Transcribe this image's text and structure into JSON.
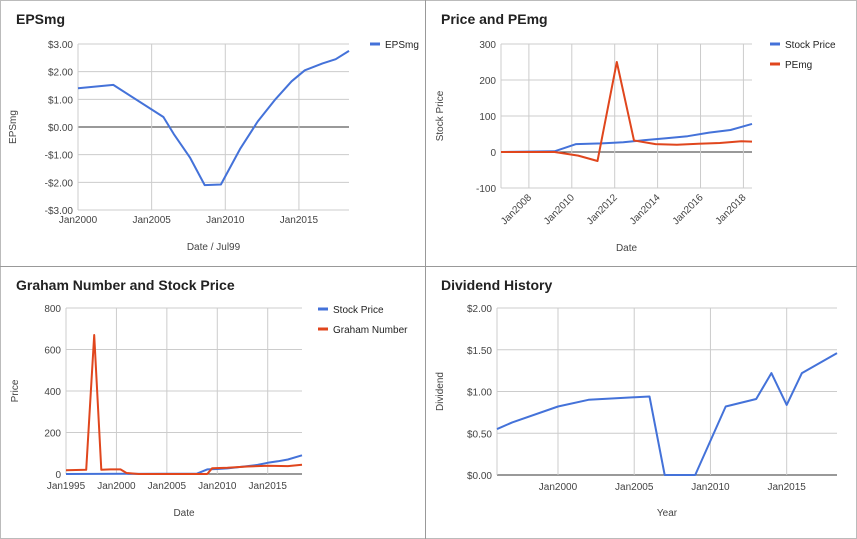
{
  "chart_data": [
    {
      "type": "line",
      "title": "EPSmg",
      "xlabel": "Date / Jul99",
      "ylabel": "EPSmg",
      "xlim": [
        2000,
        2018.4
      ],
      "ylim": [
        -3,
        3
      ],
      "xticks": [
        {
          "v": 2000,
          "label": "Jan2000"
        },
        {
          "v": 2005,
          "label": "Jan2005"
        },
        {
          "v": 2010,
          "label": "Jan2010"
        },
        {
          "v": 2015,
          "label": "Jan2015"
        }
      ],
      "yticks": [
        {
          "v": 3,
          "label": "$3.00"
        },
        {
          "v": 2,
          "label": "$2.00"
        },
        {
          "v": 1,
          "label": "$1.00"
        },
        {
          "v": 0,
          "label": "$0.00"
        },
        {
          "v": -1,
          "label": "-$1.00"
        },
        {
          "v": -2,
          "label": "-$2.00"
        },
        {
          "v": -3,
          "label": "-$3.00"
        }
      ],
      "legend_position": "top-right",
      "x_tick_angle": 0,
      "series": [
        {
          "name": "EPSmg",
          "color": "#4472d9",
          "x": [
            2000,
            2002.4,
            2005.8,
            2006.5,
            2007.6,
            2008.6,
            2009.7,
            2011,
            2012.2,
            2013.4,
            2014.5,
            2015.4,
            2016.6,
            2017.5,
            2018.4
          ],
          "y": [
            1.4,
            1.52,
            0.36,
            -0.25,
            -1.1,
            -2.1,
            -2.08,
            -0.8,
            0.2,
            1.0,
            1.65,
            2.05,
            2.3,
            2.45,
            2.75
          ]
        }
      ]
    },
    {
      "type": "line",
      "title": "Price and PEmg",
      "xlabel": "Date",
      "ylabel": "Stock Price",
      "xlim": [
        2006.7,
        2018.4
      ],
      "ylim": [
        -100,
        300
      ],
      "xticks": [
        {
          "v": 2008,
          "label": "Jan2008"
        },
        {
          "v": 2010,
          "label": "Jan2010"
        },
        {
          "v": 2012,
          "label": "Jan2012"
        },
        {
          "v": 2014,
          "label": "Jan2014"
        },
        {
          "v": 2016,
          "label": "Jan2016"
        },
        {
          "v": 2018,
          "label": "Jan2018"
        }
      ],
      "yticks": [
        {
          "v": 300,
          "label": "300"
        },
        {
          "v": 200,
          "label": "200"
        },
        {
          "v": 100,
          "label": "100"
        },
        {
          "v": 0,
          "label": "0"
        },
        {
          "v": -100,
          "label": "-100"
        }
      ],
      "legend_position": "top-right",
      "x_tick_angle": -45,
      "series": [
        {
          "name": "Stock Price",
          "color": "#4472d9",
          "x": [
            2006.7,
            2009.2,
            2010.2,
            2011.4,
            2012.4,
            2013.4,
            2014.4,
            2015.4,
            2016.4,
            2017.4,
            2018.4
          ],
          "y": [
            0,
            2,
            22,
            24,
            27,
            33,
            38,
            44,
            54,
            61,
            78
          ]
        },
        {
          "name": "PEmg",
          "color": "#e0461d",
          "x": [
            2006.7,
            2009.2,
            2010.3,
            2011.2,
            2012.1,
            2012.9,
            2013.9,
            2014.9,
            2015.9,
            2016.9,
            2017.9,
            2018.4
          ],
          "y": [
            0,
            0,
            -10,
            -25,
            250,
            32,
            22,
            20,
            23,
            25,
            30,
            29
          ]
        }
      ]
    },
    {
      "type": "line",
      "title": "Graham Number and Stock Price",
      "xlabel": "Date",
      "ylabel": "Price",
      "xlim": [
        1995,
        2018.4
      ],
      "ylim": [
        0,
        800
      ],
      "xticks": [
        {
          "v": 1995,
          "label": "Jan1995"
        },
        {
          "v": 2000,
          "label": "Jan2000"
        },
        {
          "v": 2005,
          "label": "Jan2005"
        },
        {
          "v": 2010,
          "label": "Jan2010"
        },
        {
          "v": 2015,
          "label": "Jan2015"
        }
      ],
      "yticks": [
        {
          "v": 800,
          "label": "800"
        },
        {
          "v": 600,
          "label": "600"
        },
        {
          "v": 400,
          "label": "400"
        },
        {
          "v": 200,
          "label": "200"
        },
        {
          "v": 0,
          "label": "0"
        }
      ],
      "legend_position": "top-right",
      "x_tick_angle": 0,
      "series": [
        {
          "name": "Stock Price",
          "color": "#4472d9",
          "x": [
            1995,
            2008,
            2009,
            2010,
            2011,
            2012,
            2013,
            2014,
            2015,
            2016,
            2017,
            2018.4
          ],
          "y": [
            0,
            2,
            22,
            24,
            27,
            33,
            38,
            44,
            54,
            61,
            70,
            90
          ]
        },
        {
          "name": "Graham Number",
          "color": "#e0461d",
          "x": [
            1995,
            1997,
            1997.8,
            1998.5,
            1999.4,
            2000.4,
            2001,
            2002.2,
            2009,
            2009.5,
            2011,
            2013,
            2015,
            2017,
            2018.4
          ],
          "y": [
            18,
            20,
            670,
            20,
            22,
            22,
            5,
            0,
            0,
            28,
            30,
            36,
            40,
            38,
            45
          ]
        }
      ]
    },
    {
      "type": "line",
      "title": "Dividend History",
      "xlabel": "Year",
      "ylabel": "Dividend",
      "xlim": [
        1996,
        2018.3
      ],
      "ylim": [
        0,
        2
      ],
      "xticks": [
        {
          "v": 2000,
          "label": "Jan2000"
        },
        {
          "v": 2005,
          "label": "Jan2005"
        },
        {
          "v": 2010,
          "label": "Jan2010"
        },
        {
          "v": 2015,
          "label": "Jan2015"
        }
      ],
      "yticks": [
        {
          "v": 2,
          "label": "$2.00"
        },
        {
          "v": 1.5,
          "label": "$1.50"
        },
        {
          "v": 1,
          "label": "$1.00"
        },
        {
          "v": 0.5,
          "label": "$0.50"
        },
        {
          "v": 0,
          "label": "$0.00"
        }
      ],
      "legend_position": "none",
      "x_tick_angle": 0,
      "series": [
        {
          "name": "",
          "color": "#4472d9",
          "x": [
            1996,
            1997,
            2000,
            2002,
            2005,
            2006,
            2007,
            2009,
            2011,
            2013,
            2014,
            2015,
            2016,
            2018.3
          ],
          "y": [
            0.55,
            0.63,
            0.82,
            0.9,
            0.93,
            0.94,
            0,
            0,
            0.82,
            0.91,
            1.22,
            0.84,
            1.22,
            1.46
          ]
        }
      ]
    }
  ]
}
